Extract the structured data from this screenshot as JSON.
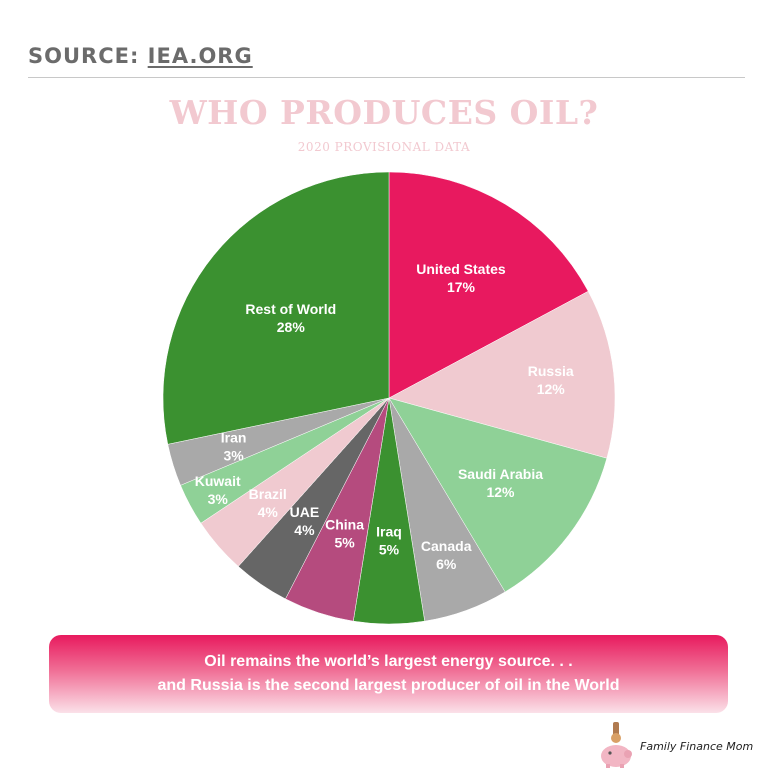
{
  "header": {
    "source_prefix": "SOURCE:",
    "source_link": "IEA.ORG"
  },
  "banner": {
    "line1": "Oil remains the world’s largest energy source. . .",
    "line2": "and Russia is the second largest producer of oil in the World"
  },
  "brand": {
    "name": "Family Finance Mom"
  },
  "chart_data": {
    "type": "pie",
    "title": "WHO PRODUCES OIL?",
    "subtitle": "2020 PROVISIONAL DATA",
    "slices": [
      {
        "label": "United States",
        "value": 17,
        "value_label": "17%",
        "color": "#e8195f"
      },
      {
        "label": "Russia",
        "value": 12,
        "value_label": "12%",
        "color": "#f0cad0"
      },
      {
        "label": "Saudi Arabia",
        "value": 12,
        "value_label": "12%",
        "color": "#8fd197"
      },
      {
        "label": "Canada",
        "value": 6,
        "value_label": "6%",
        "color": "#a9a9a9"
      },
      {
        "label": "Iraq",
        "value": 5,
        "value_label": "5%",
        "color": "#3b9130"
      },
      {
        "label": "China",
        "value": 5,
        "value_label": "5%",
        "color": "#b54b7e"
      },
      {
        "label": "UAE",
        "value": 4,
        "value_label": "4%",
        "color": "#666666"
      },
      {
        "label": "Brazil",
        "value": 4,
        "value_label": "4%",
        "color": "#f0cad0"
      },
      {
        "label": "Kuwait",
        "value": 3,
        "value_label": "3%",
        "color": "#8fd197"
      },
      {
        "label": "Iran",
        "value": 3,
        "value_label": "3%",
        "color": "#a9a9a9"
      },
      {
        "label": "Rest of World",
        "value": 28,
        "value_label": "28%",
        "color": "#3b9130"
      }
    ]
  }
}
